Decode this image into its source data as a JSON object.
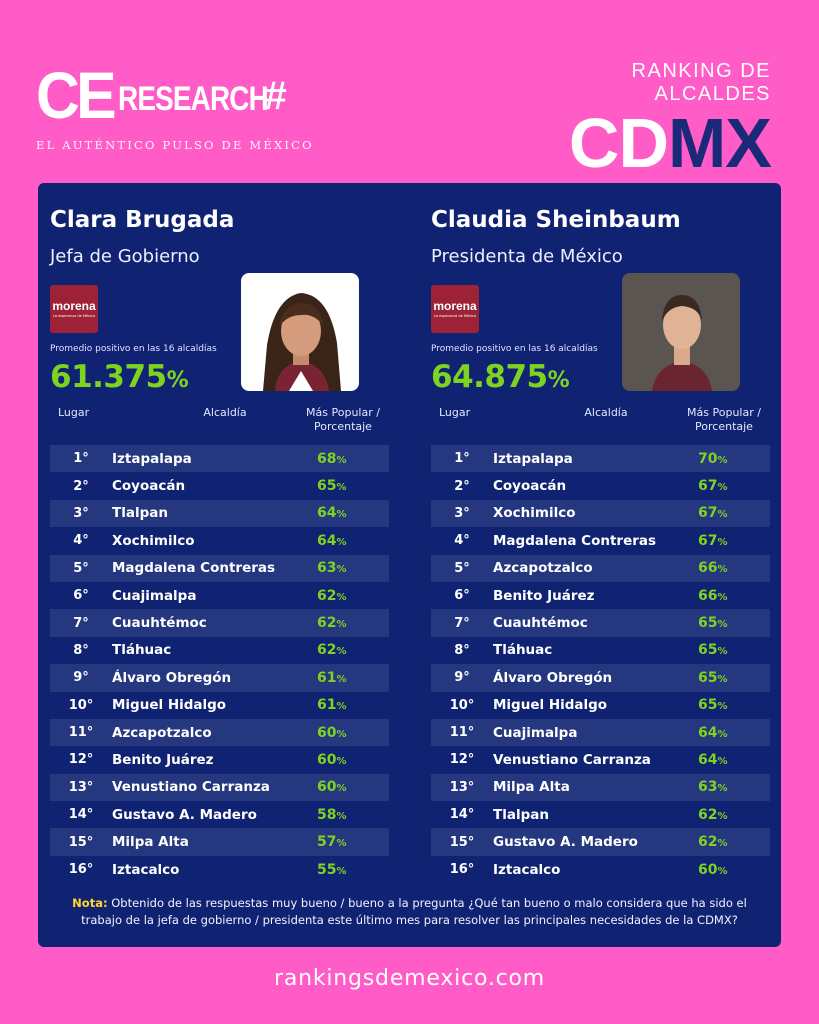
{
  "brand": {
    "logo_ce": "CE",
    "logo_research": "RESEARCH",
    "logo_hash": "#",
    "tagline": "EL AUTÉNTICO PULSO DE MÉXICO"
  },
  "ranking": {
    "subtitle": "RANKING DE ALCALDES",
    "title_a": "CD",
    "title_b": "MX"
  },
  "left": {
    "name": "Clara Brugada",
    "role": "Jefa de Gobierno",
    "party": "morena",
    "party_slogan": "La esperanza de México",
    "avg_label": "Promedio positivo en las 16 alcaldías",
    "avg_value": "61.375",
    "avg_sign": "%",
    "headers": {
      "lugar": "Lugar",
      "alcaldia": "Alcaldía",
      "popular": "Más Popular / Porcentaje"
    },
    "rows": [
      {
        "place": "1°",
        "name": "Iztapalapa",
        "pct": "68"
      },
      {
        "place": "2°",
        "name": "Coyoacán",
        "pct": "65"
      },
      {
        "place": "3°",
        "name": "Tlalpan",
        "pct": "64"
      },
      {
        "place": "4°",
        "name": "Xochimilco",
        "pct": "64"
      },
      {
        "place": "5°",
        "name": "Magdalena Contreras",
        "pct": "63"
      },
      {
        "place": "6°",
        "name": "Cuajimalpa",
        "pct": "62"
      },
      {
        "place": "7°",
        "name": "Cuauhtémoc",
        "pct": "62"
      },
      {
        "place": "8°",
        "name": "Tláhuac",
        "pct": "62"
      },
      {
        "place": "9°",
        "name": "Álvaro Obregón",
        "pct": "61"
      },
      {
        "place": "10°",
        "name": "Miguel Hidalgo",
        "pct": "61"
      },
      {
        "place": "11°",
        "name": "Azcapotzalco",
        "pct": "60"
      },
      {
        "place": "12°",
        "name": "Benito Juárez",
        "pct": "60"
      },
      {
        "place": "13°",
        "name": "Venustiano Carranza",
        "pct": "60"
      },
      {
        "place": "14°",
        "name": "Gustavo A. Madero",
        "pct": "58"
      },
      {
        "place": "15°",
        "name": "Milpa Alta",
        "pct": "57"
      },
      {
        "place": "16°",
        "name": "Iztacalco",
        "pct": "55"
      }
    ]
  },
  "right": {
    "name": "Claudia Sheinbaum",
    "role": "Presidenta de México",
    "party": "morena",
    "party_slogan": "La esperanza de México",
    "avg_label": "Promedio positivo en las 16 alcaldías",
    "avg_value": "64.875",
    "avg_sign": "%",
    "headers": {
      "lugar": "Lugar",
      "alcaldia": "Alcaldía",
      "popular": "Más Popular / Porcentaje"
    },
    "rows": [
      {
        "place": "1°",
        "name": "Iztapalapa",
        "pct": "70"
      },
      {
        "place": "2°",
        "name": "Coyoacán",
        "pct": "67"
      },
      {
        "place": "3°",
        "name": "Xochimilco",
        "pct": "67"
      },
      {
        "place": "4°",
        "name": "Magdalena Contreras",
        "pct": "67"
      },
      {
        "place": "5°",
        "name": "Azcapotzalco",
        "pct": "66"
      },
      {
        "place": "6°",
        "name": "Benito Juárez",
        "pct": "66"
      },
      {
        "place": "7°",
        "name": "Cuauhtémoc",
        "pct": "65"
      },
      {
        "place": "8°",
        "name": "Tláhuac",
        "pct": "65"
      },
      {
        "place": "9°",
        "name": "Álvaro Obregón",
        "pct": "65"
      },
      {
        "place": "10°",
        "name": "Miguel Hidalgo",
        "pct": "65"
      },
      {
        "place": "11°",
        "name": "Cuajimalpa",
        "pct": "64"
      },
      {
        "place": "12°",
        "name": "Venustiano Carranza",
        "pct": "64"
      },
      {
        "place": "13°",
        "name": "Milpa Alta",
        "pct": "63"
      },
      {
        "place": "14°",
        "name": "Tlalpan",
        "pct": "62"
      },
      {
        "place": "15°",
        "name": "Gustavo A. Madero",
        "pct": "62"
      },
      {
        "place": "16°",
        "name": "Iztacalco",
        "pct": "60"
      }
    ]
  },
  "pct_sign": "%",
  "note": {
    "label": "Nota:",
    "text": "Obtenido de las respuestas muy bueno / bueno a la pregunta ¿Qué tan bueno o malo considera que ha sido el trabajo de la jefa de gobierno / presidenta este último mes para resolver las principales necesidades de la CDMX?"
  },
  "footer": {
    "url": "rankingsdemexico.com"
  },
  "colors": {
    "background": "#ff5cc8",
    "panel": "#102372",
    "accent_green": "#7ed321",
    "note_yellow": "#ffd92e",
    "mx_blue": "#1a2a78"
  }
}
